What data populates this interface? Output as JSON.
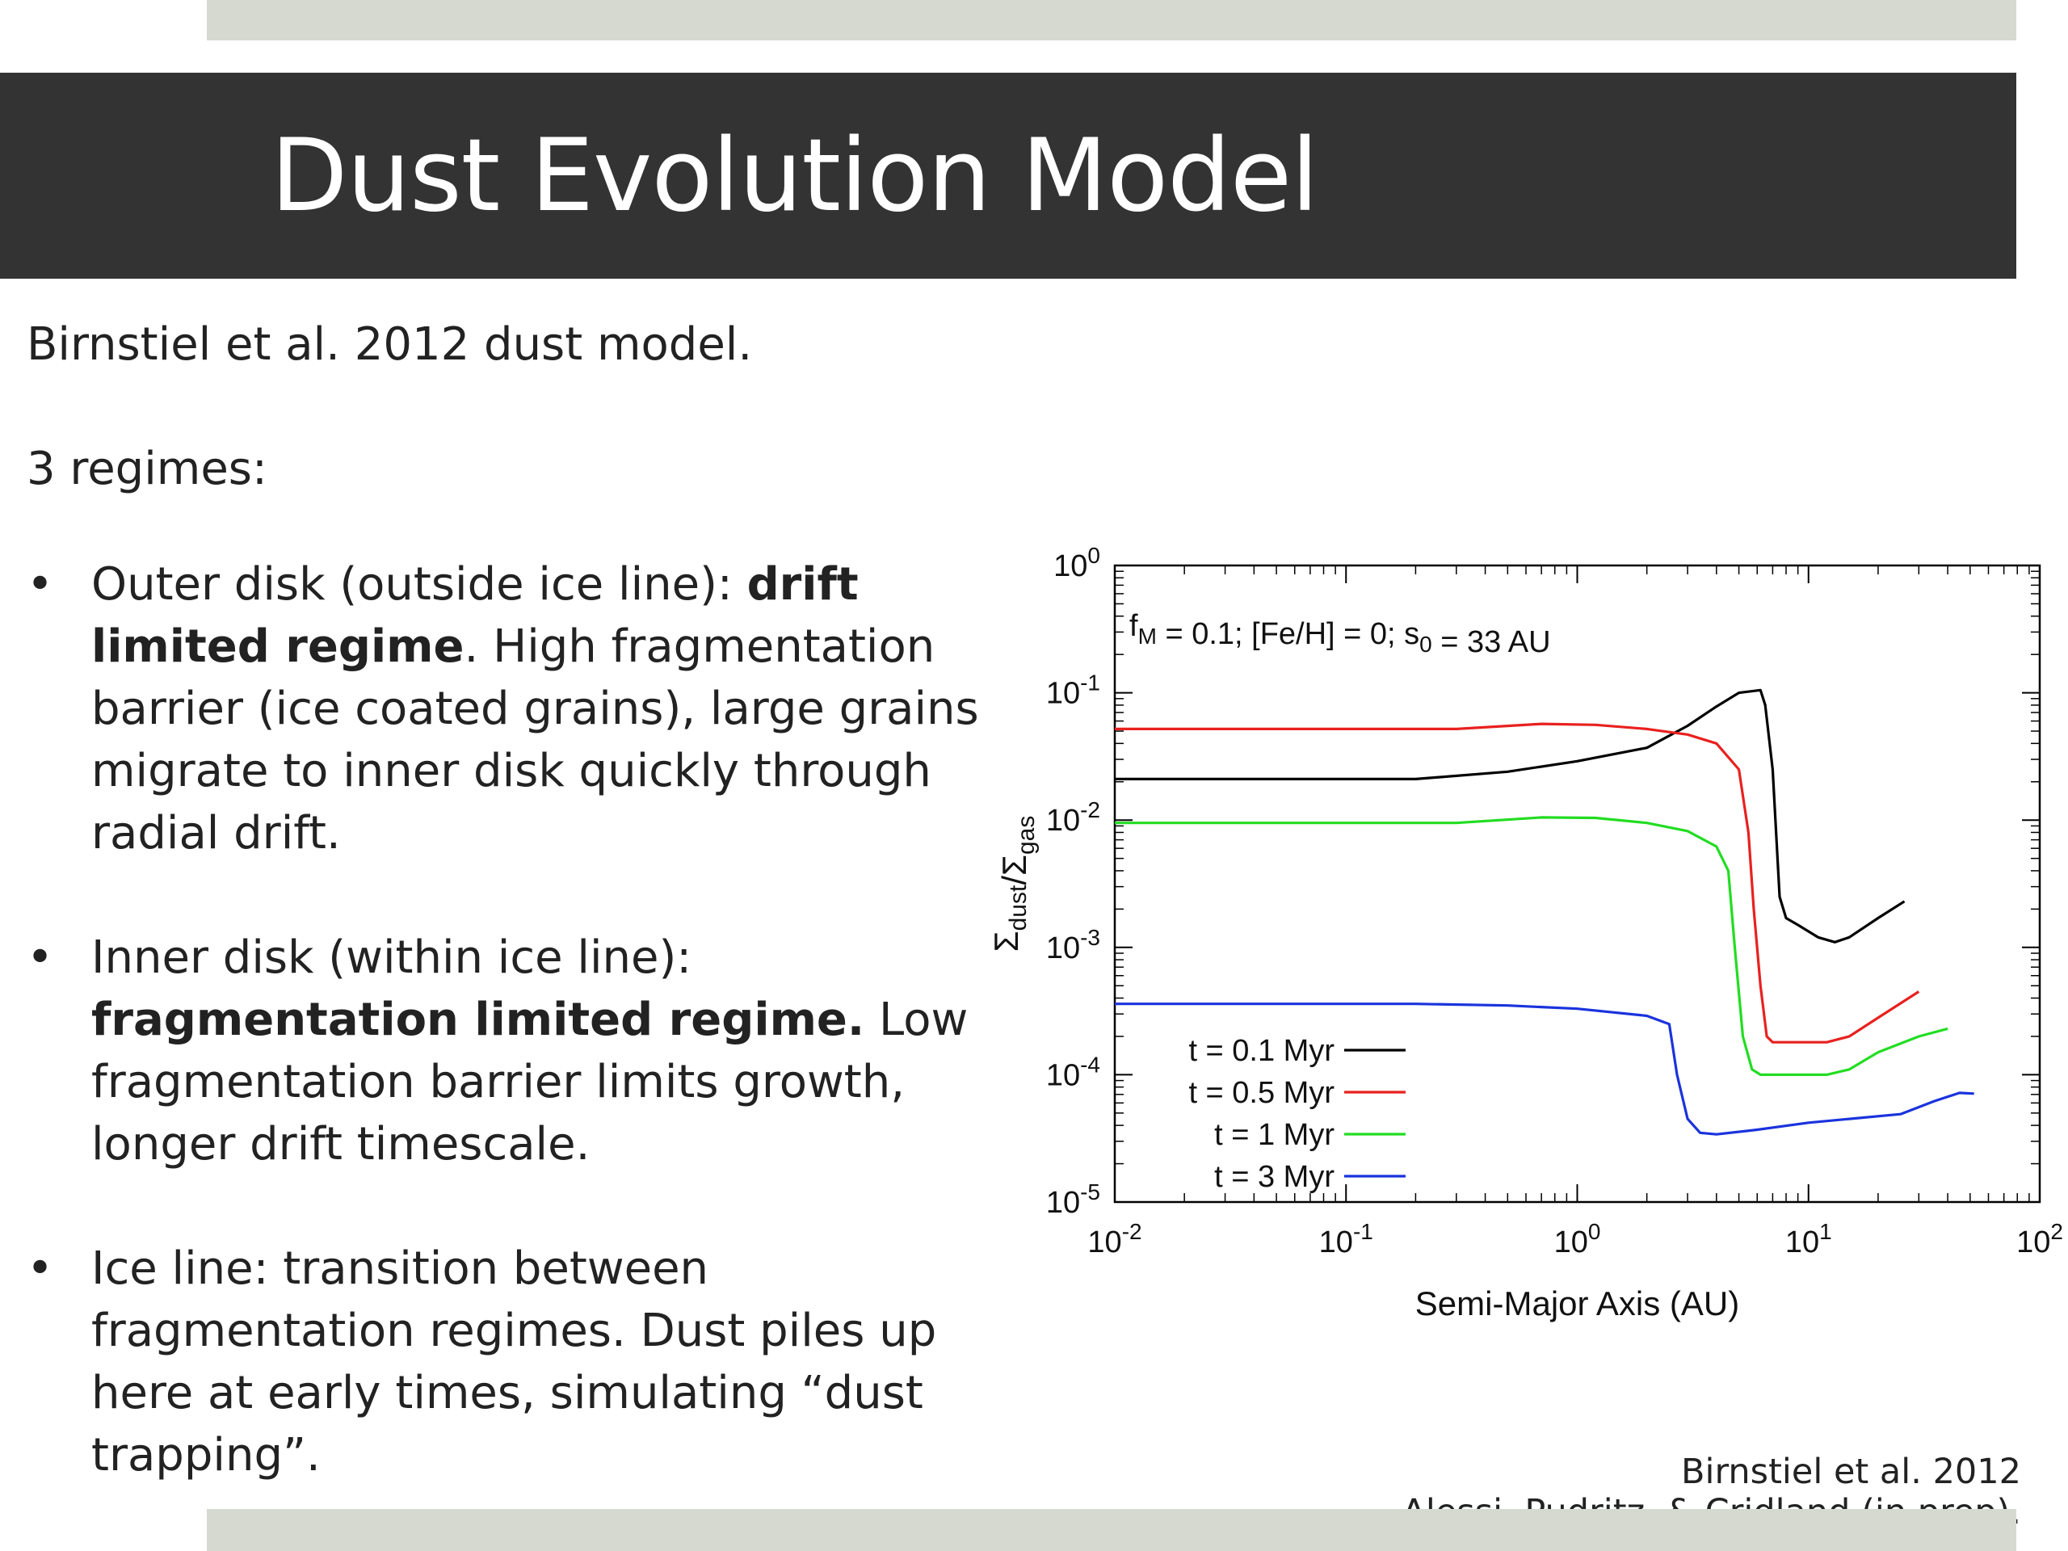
{
  "slide": {
    "title": "Dust Evolution Model",
    "intro": "Birnstiel et al. 2012 dust model.",
    "regimes_heading": "3 regimes:",
    "bullet_symbol": "•",
    "bullets": [
      {
        "pre": "Outer disk (outside ice line): ",
        "bold": "drift limited regime",
        "post": ". High fragmentation barrier (ice coated grains), large grains migrate to inner disk quickly through radial drift."
      },
      {
        "pre": "Inner disk (within ice line): ",
        "bold": "fragmentation limited regime.",
        "post": " Low fragmentation barrier limits growth, longer drift timescale."
      },
      {
        "pre": "Ice line: transition between fragmentation regimes. Dust piles up here at early times, simulating “dust trapping”.",
        "bold": "",
        "post": ""
      }
    ],
    "citation_line1": "Birnstiel et al. 2012",
    "citation_line2": "Alessi, Pudritz, & Cridland (in prep)."
  },
  "chart_data": {
    "type": "line",
    "annotation": "f_M = 0.1; [Fe/H] = 0; s_0 = 33 AU",
    "xlabel": "Semi-Major Axis (AU)",
    "ylabel": "Σ_dust/Σ_gas",
    "xscale": "log",
    "yscale": "log",
    "xlim": [
      0.01,
      100
    ],
    "ylim": [
      1e-05,
      1
    ],
    "x_ticks": [
      0.01,
      0.1,
      1,
      10,
      100
    ],
    "x_tick_labels": [
      "10^-2",
      "10^-1",
      "10^0",
      "10^1",
      "10^2"
    ],
    "y_ticks": [
      1e-05,
      0.0001,
      0.001,
      0.01,
      0.1,
      1
    ],
    "y_tick_labels": [
      "10^-5",
      "10^-4",
      "10^-3",
      "10^-2",
      "10^-1",
      "10^0"
    ],
    "grid": false,
    "legend_position": "bottom-left",
    "series": [
      {
        "name": "t = 0.1 Myr",
        "color": "#000000",
        "x": [
          0.01,
          0.2,
          0.5,
          1,
          2,
          3,
          4,
          5,
          6.2,
          6.5,
          7,
          7.5,
          8,
          9,
          11,
          13,
          15,
          20,
          26
        ],
        "y": [
          0.021,
          0.021,
          0.024,
          0.029,
          0.037,
          0.055,
          0.078,
          0.1,
          0.105,
          0.08,
          0.025,
          0.0025,
          0.0017,
          0.0015,
          0.0012,
          0.0011,
          0.0012,
          0.0017,
          0.0023
        ]
      },
      {
        "name": "t = 0.5 Myr",
        "color": "#e8211f",
        "x": [
          0.01,
          0.3,
          0.7,
          1.2,
          2,
          3,
          4,
          5,
          5.5,
          5.8,
          6.2,
          6.6,
          7,
          8,
          12,
          15,
          20,
          30
        ],
        "y": [
          0.052,
          0.052,
          0.057,
          0.056,
          0.052,
          0.047,
          0.04,
          0.025,
          0.008,
          0.002,
          0.0005,
          0.0002,
          0.00018,
          0.00018,
          0.00018,
          0.0002,
          0.00028,
          0.00045
        ]
      },
      {
        "name": "t = 1 Myr",
        "color": "#22dd22",
        "x": [
          0.01,
          0.3,
          0.7,
          1.2,
          2,
          3,
          4,
          4.5,
          4.8,
          5.2,
          5.7,
          6.2,
          8,
          12,
          15,
          20,
          30,
          40
        ],
        "y": [
          0.0095,
          0.0095,
          0.0105,
          0.0104,
          0.0095,
          0.0082,
          0.0062,
          0.004,
          0.001,
          0.0002,
          0.00011,
          0.0001,
          0.0001,
          0.0001,
          0.00011,
          0.00015,
          0.0002,
          0.00023
        ]
      },
      {
        "name": "t = 3 Myr",
        "color": "#1a33dd",
        "x": [
          0.01,
          0.2,
          0.5,
          1,
          2,
          2.5,
          2.7,
          3,
          3.4,
          4,
          6,
          10,
          15,
          25,
          35,
          45,
          52
        ],
        "y": [
          0.00036,
          0.00036,
          0.00035,
          0.00033,
          0.00029,
          0.00025,
          0.0001,
          4.5e-05,
          3.5e-05,
          3.4e-05,
          3.7e-05,
          4.2e-05,
          4.5e-05,
          4.9e-05,
          6.2e-05,
          7.2e-05,
          7.1e-05
        ]
      }
    ]
  }
}
